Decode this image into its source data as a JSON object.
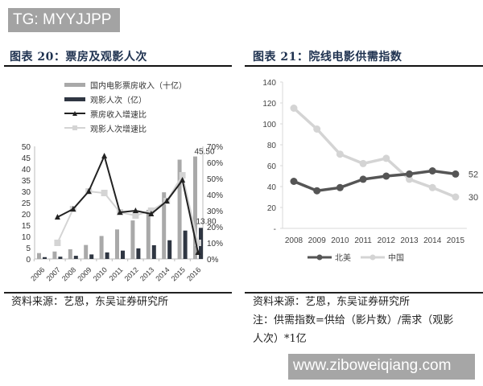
{
  "watermark_top": "TG: MYYJJPP",
  "watermark_bottom": "www.ziboweiqiang.com",
  "left_panel": {
    "title": "图表 20：票房及观影人次",
    "source": "资料来源：艺恩，东吴证券研究所",
    "legend": [
      {
        "label": "国内电影票房收入（十亿）",
        "color": "#a9a9a9",
        "type": "bar"
      },
      {
        "label": "观影人次（亿）",
        "color": "#2f3642",
        "type": "bar"
      },
      {
        "label": "票房收入增速比",
        "color": "#222222",
        "type": "line-triangle"
      },
      {
        "label": "观影人次增速比",
        "color": "#d4d4d4",
        "type": "line-square"
      }
    ],
    "annotations": {
      "box_office_2016": "45.50",
      "admissions_2016": "13.80"
    }
  },
  "right_panel": {
    "title": "图表 21：院线电影供需指数",
    "source": "资料来源：艺恩，东吴证券研究所",
    "note_line1": "注：供需指数=供给（影片数）/需求（观影",
    "note_line2": "人次）*1亿",
    "legend": [
      {
        "label": "北美",
        "color": "#555555"
      },
      {
        "label": "中国",
        "color": "#d4d4d4"
      }
    ],
    "end_labels": {
      "north_america": "52",
      "china": "30"
    }
  },
  "chart_data": [
    {
      "type": "bar",
      "title": "票房及观影人次",
      "categories": [
        "2006",
        "2007",
        "2008",
        "2009",
        "2010",
        "2011",
        "2012",
        "2013",
        "2014",
        "2015",
        "2016"
      ],
      "series": [
        {
          "name": "国内电影票房收入（十亿）",
          "axis": "left",
          "type": "bar",
          "values": [
            2.6,
            3.3,
            4.3,
            6.2,
            10.2,
            13.1,
            17.1,
            21.8,
            29.6,
            44.1,
            45.5
          ]
        },
        {
          "name": "观影人次（亿）",
          "axis": "left",
          "type": "bar",
          "values": [
            0.8,
            1.0,
            1.4,
            2.0,
            2.9,
            3.7,
            4.7,
            6.1,
            8.3,
            12.6,
            13.8
          ]
        },
        {
          "name": "票房收入增速比",
          "axis": "right",
          "type": "line",
          "values": [
            null,
            26,
            31,
            42,
            64,
            29,
            30,
            28,
            36,
            49,
            4
          ]
        },
        {
          "name": "观影人次增速比",
          "axis": "right",
          "type": "line",
          "values": [
            null,
            10,
            31,
            42,
            41,
            29,
            27,
            30,
            36,
            52,
            10
          ]
        }
      ],
      "left_axis": {
        "ticks": [
          0,
          5,
          10,
          15,
          20,
          25,
          30,
          35,
          40,
          45,
          50
        ],
        "ylim": [
          0,
          50
        ]
      },
      "right_axis": {
        "ticks": [
          "0%",
          "10%",
          "20%",
          "30%",
          "40%",
          "50%",
          "60%",
          "70%"
        ],
        "ylim": [
          0,
          70
        ]
      },
      "data_labels": {
        "box_office_2016": "45.50",
        "admissions_2016": "13.80"
      },
      "legend_position": "top-left"
    },
    {
      "type": "line",
      "title": "院线电影供需指数",
      "categories": [
        "2008",
        "2009",
        "2010",
        "2011",
        "2012",
        "2013",
        "2014",
        "2015"
      ],
      "series": [
        {
          "name": "北美",
          "values": [
            45,
            36,
            39,
            47,
            50,
            52,
            55,
            52
          ]
        },
        {
          "name": "中国",
          "values": [
            115,
            95,
            71,
            62,
            67,
            47,
            39,
            30
          ]
        }
      ],
      "yticks": [
        "-",
        "20",
        "40",
        "60",
        "80",
        "100",
        "120",
        "140"
      ],
      "ylim": [
        0,
        140
      ],
      "end_labels": {
        "北美": "52",
        "中国": "30"
      },
      "legend_position": "bottom"
    }
  ]
}
